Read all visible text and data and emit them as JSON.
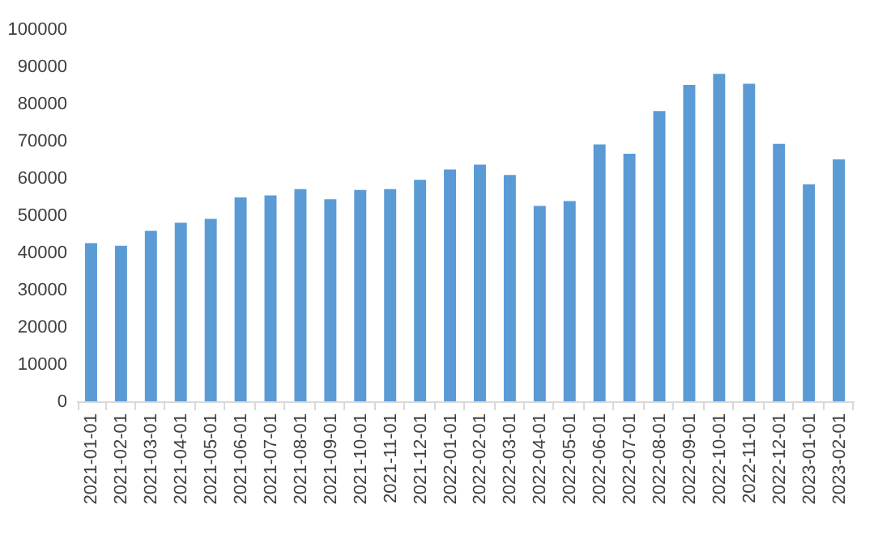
{
  "chart_data": {
    "type": "bar",
    "categories": [
      "2021-01-01",
      "2021-02-01",
      "2021-03-01",
      "2021-04-01",
      "2021-05-01",
      "2021-06-01",
      "2021-07-01",
      "2021-08-01",
      "2021-09-01",
      "2021-10-01",
      "2021-11-01",
      "2021-12-01",
      "2022-01-01",
      "2022-02-01",
      "2022-03-01",
      "2022-04-01",
      "2022-05-01",
      "2022-06-01",
      "2022-07-01",
      "2022-08-01",
      "2022-09-01",
      "2022-10-01",
      "2022-11-01",
      "2022-12-01",
      "2023-01-01",
      "2023-02-01"
    ],
    "values": [
      42500,
      41800,
      45800,
      48000,
      49000,
      54800,
      55300,
      57000,
      54300,
      56800,
      57000,
      59500,
      62300,
      63600,
      60800,
      52500,
      53800,
      69000,
      66500,
      78000,
      85000,
      88000,
      85300,
      69200,
      58300,
      65000
    ],
    "color": "#5b9bd5",
    "ylim": [
      0,
      100000
    ],
    "yticks": [
      0,
      10000,
      20000,
      30000,
      40000,
      50000,
      60000,
      70000,
      80000,
      90000,
      100000
    ],
    "grid": false
  }
}
